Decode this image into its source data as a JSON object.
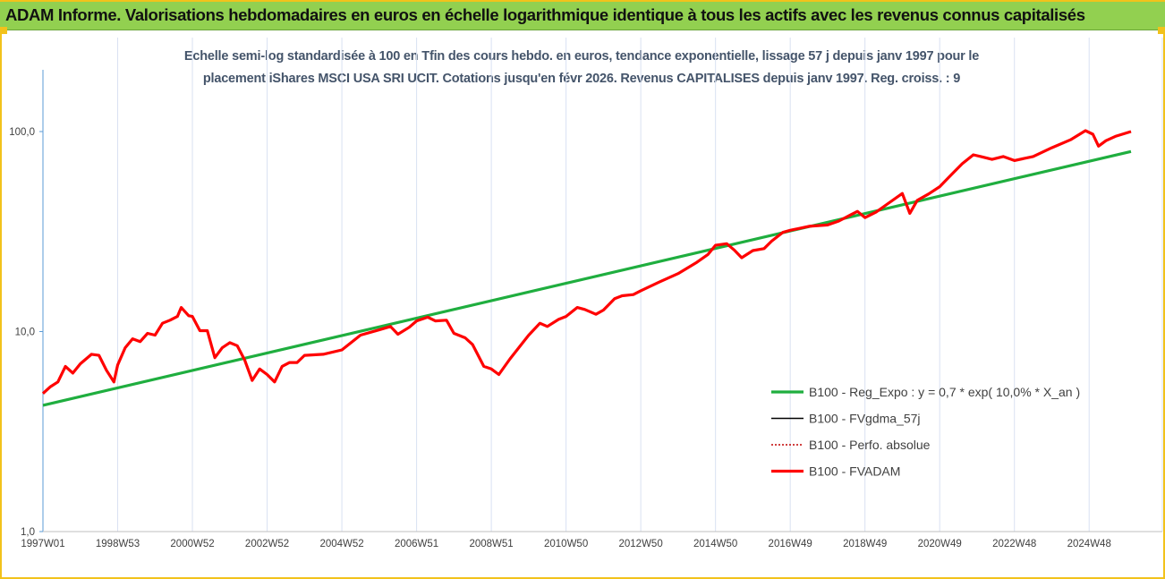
{
  "banner": {
    "title": "ADAM Informe. Valorisations hebdomadaires en euros en échelle logarithmique identique à tous les actifs avec les revenus connus capitalisés"
  },
  "colors": {
    "banner_bg": "#92d050",
    "frame": "#f2c21b",
    "grid": "#d9e1f2",
    "axis": "#5b9bd5"
  },
  "chart_data": {
    "type": "line",
    "title_lines": [
      "Echelle semi-log standardisée à 100 en Tfin des cours hebdo. en euros, tendance exponentielle, lissage 57 j depuis janv 1997 pour le",
      "placement iShares MSCI USA SRI UCIT. Cotations jusqu'en févr 2026. Revenus CAPITALISES depuis janv 1997.  Reg. croiss. : 9"
    ],
    "y_scale": "log",
    "ylim": [
      1,
      100
    ],
    "y_ticks": [
      {
        "value": 1,
        "label": "1,0"
      },
      {
        "value": 10,
        "label": "10,0"
      },
      {
        "value": 100,
        "label": "100,0"
      }
    ],
    "xlim": [
      1997.0,
      2026.12
    ],
    "x_ticks": [
      {
        "value": 1997.0,
        "label": "1997W01"
      },
      {
        "value": 1999.0,
        "label": "1998W53"
      },
      {
        "value": 2001.0,
        "label": "2000W52"
      },
      {
        "value": 2003.0,
        "label": "2002W52"
      },
      {
        "value": 2005.0,
        "label": "2004W52"
      },
      {
        "value": 2007.0,
        "label": "2006W51"
      },
      {
        "value": 2009.0,
        "label": "2008W51"
      },
      {
        "value": 2011.0,
        "label": "2010W50"
      },
      {
        "value": 2013.0,
        "label": "2012W50"
      },
      {
        "value": 2015.0,
        "label": "2014W50"
      },
      {
        "value": 2017.0,
        "label": "2016W49"
      },
      {
        "value": 2019.0,
        "label": "2018W49"
      },
      {
        "value": 2021.0,
        "label": "2020W49"
      },
      {
        "value": 2023.0,
        "label": "2022W48"
      },
      {
        "value": 2025.0,
        "label": "2024W48"
      }
    ],
    "grid": "vertical",
    "legend_position": "lower-right",
    "series": [
      {
        "name": "B100 - Reg_Expo : y = 0,7 * exp( 10,0% *  X_an )",
        "color": "#1fae3f",
        "style": "thick",
        "points": [
          [
            1997.0,
            4.28
          ],
          [
            2026.12,
            79.5
          ]
        ]
      },
      {
        "name": "B100 - FVgdma_57j",
        "color": "#000000",
        "style": "thin",
        "points": []
      },
      {
        "name": "B100 - Perfo. absolue",
        "color": "#c00000",
        "style": "dotted",
        "points": []
      },
      {
        "name": "B100 - FVADAM",
        "color": "#ff0000",
        "style": "thick",
        "points": [
          [
            1997.0,
            4.9
          ],
          [
            1997.2,
            5.3
          ],
          [
            1997.4,
            5.6
          ],
          [
            1997.6,
            6.7
          ],
          [
            1997.8,
            6.2
          ],
          [
            1998.0,
            6.9
          ],
          [
            1998.3,
            7.7
          ],
          [
            1998.5,
            7.6
          ],
          [
            1998.7,
            6.4
          ],
          [
            1998.9,
            5.6
          ],
          [
            1999.0,
            6.8
          ],
          [
            1999.2,
            8.3
          ],
          [
            1999.4,
            9.2
          ],
          [
            1999.6,
            8.9
          ],
          [
            1999.8,
            9.8
          ],
          [
            2000.0,
            9.6
          ],
          [
            2000.2,
            11.0
          ],
          [
            2000.4,
            11.4
          ],
          [
            2000.6,
            11.9
          ],
          [
            2000.7,
            13.2
          ],
          [
            2000.9,
            12.0
          ],
          [
            2001.0,
            11.9
          ],
          [
            2001.2,
            10.1
          ],
          [
            2001.4,
            10.1
          ],
          [
            2001.6,
            7.4
          ],
          [
            2001.8,
            8.3
          ],
          [
            2002.0,
            8.8
          ],
          [
            2002.2,
            8.5
          ],
          [
            2002.4,
            7.2
          ],
          [
            2002.6,
            5.7
          ],
          [
            2002.8,
            6.5
          ],
          [
            2003.0,
            6.1
          ],
          [
            2003.2,
            5.6
          ],
          [
            2003.4,
            6.7
          ],
          [
            2003.6,
            7.0
          ],
          [
            2003.8,
            7.0
          ],
          [
            2004.0,
            7.6
          ],
          [
            2004.5,
            7.7
          ],
          [
            2005.0,
            8.1
          ],
          [
            2005.5,
            9.6
          ],
          [
            2006.0,
            10.2
          ],
          [
            2006.3,
            10.6
          ],
          [
            2006.5,
            9.7
          ],
          [
            2006.8,
            10.5
          ],
          [
            2007.0,
            11.3
          ],
          [
            2007.3,
            11.8
          ],
          [
            2007.5,
            11.3
          ],
          [
            2007.8,
            11.4
          ],
          [
            2008.0,
            9.8
          ],
          [
            2008.3,
            9.3
          ],
          [
            2008.5,
            8.6
          ],
          [
            2008.8,
            6.7
          ],
          [
            2009.0,
            6.5
          ],
          [
            2009.2,
            6.1
          ],
          [
            2009.5,
            7.3
          ],
          [
            2009.8,
            8.6
          ],
          [
            2010.0,
            9.6
          ],
          [
            2010.3,
            11.0
          ],
          [
            2010.5,
            10.6
          ],
          [
            2010.8,
            11.5
          ],
          [
            2011.0,
            11.9
          ],
          [
            2011.3,
            13.2
          ],
          [
            2011.5,
            12.9
          ],
          [
            2011.8,
            12.2
          ],
          [
            2012.0,
            12.8
          ],
          [
            2012.3,
            14.6
          ],
          [
            2012.5,
            15.1
          ],
          [
            2012.8,
            15.3
          ],
          [
            2013.0,
            16.0
          ],
          [
            2013.5,
            17.7
          ],
          [
            2014.0,
            19.5
          ],
          [
            2014.5,
            22.2
          ],
          [
            2014.8,
            24.3
          ],
          [
            2015.0,
            27.0
          ],
          [
            2015.3,
            27.5
          ],
          [
            2015.5,
            25.6
          ],
          [
            2015.7,
            23.4
          ],
          [
            2016.0,
            25.4
          ],
          [
            2016.3,
            26.0
          ],
          [
            2016.5,
            28.3
          ],
          [
            2016.8,
            31.3
          ],
          [
            2017.0,
            32.1
          ],
          [
            2017.5,
            33.6
          ],
          [
            2018.0,
            34.1
          ],
          [
            2018.3,
            35.7
          ],
          [
            2018.6,
            38.2
          ],
          [
            2018.8,
            39.9
          ],
          [
            2019.0,
            37.1
          ],
          [
            2019.3,
            39.6
          ],
          [
            2019.6,
            43.4
          ],
          [
            2020.0,
            49.0
          ],
          [
            2020.2,
            39.0
          ],
          [
            2020.4,
            45.3
          ],
          [
            2020.7,
            48.7
          ],
          [
            2021.0,
            53.0
          ],
          [
            2021.3,
            60.5
          ],
          [
            2021.6,
            69.0
          ],
          [
            2021.9,
            76.5
          ],
          [
            2022.1,
            75.0
          ],
          [
            2022.4,
            72.6
          ],
          [
            2022.7,
            75.0
          ],
          [
            2023.0,
            71.6
          ],
          [
            2023.5,
            75.0
          ],
          [
            2024.0,
            83.0
          ],
          [
            2024.5,
            91.0
          ],
          [
            2024.9,
            101.0
          ],
          [
            2025.1,
            97.0
          ],
          [
            2025.25,
            84.5
          ],
          [
            2025.45,
            90.0
          ],
          [
            2025.7,
            94.6
          ],
          [
            2026.12,
            100.0
          ]
        ]
      }
    ]
  }
}
